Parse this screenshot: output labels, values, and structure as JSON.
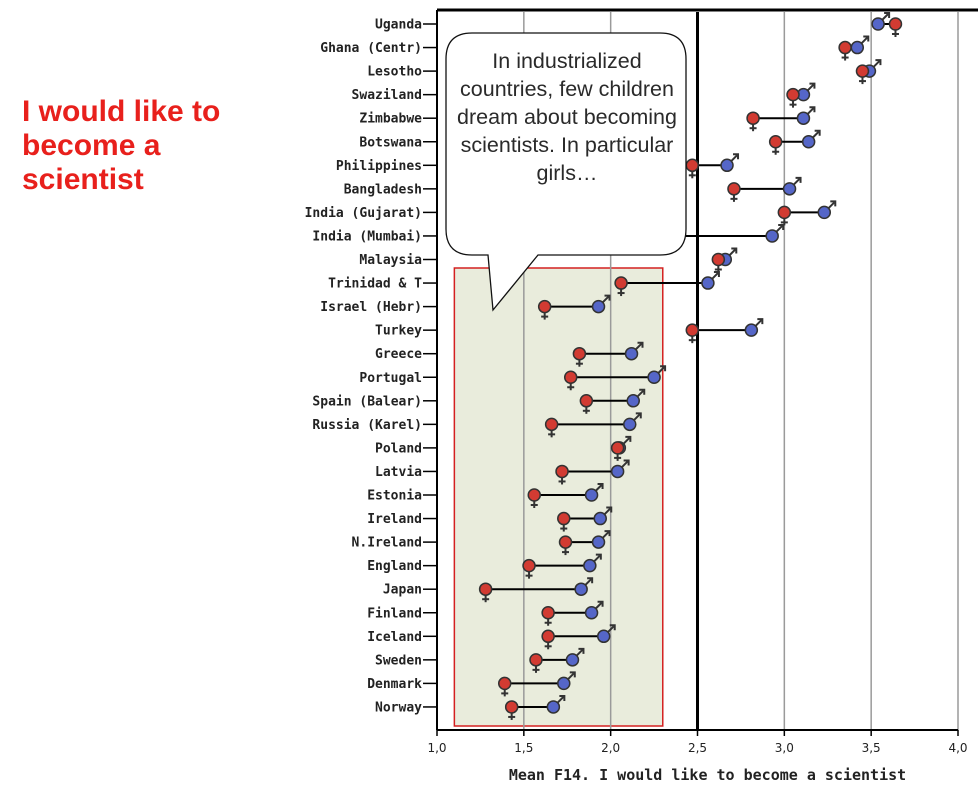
{
  "side_title": "I would like to become a scientist",
  "callout": "In industrialized countries, few children dream about becoming scientists. In particular girls…",
  "colors": {
    "female": "#d23b32",
    "male": "#5566c8",
    "highlight_border": "#d42020",
    "highlight_fill": "#e9ecdc",
    "reference_line": "#000000",
    "grid": "#9a9a9a"
  },
  "chart_data": {
    "type": "dumbbell",
    "xlabel": "Mean F14. I would like to become a scientist",
    "xlim": [
      1.0,
      4.0
    ],
    "x_ticks": [
      "1,0",
      "1,5",
      "2,0",
      "2,5",
      "3,0",
      "3,5",
      "4,0"
    ],
    "reference_line": 2.5,
    "highlight_x_range": [
      1.1,
      2.3
    ],
    "categories": [
      "Uganda",
      "Ghana (Centr)",
      "Lesotho",
      "Swaziland",
      "Zimbabwe",
      "Botswana",
      "Philippines",
      "Bangladesh",
      "India (Gujarat)",
      "India (Mumbai)",
      "Malaysia",
      "Trinidad & T",
      "Israel (Hebr)",
      "Turkey",
      "Greece",
      "Portugal",
      "Spain (Balear)",
      "Russia (Karel)",
      "Poland",
      "Latvia",
      "Estonia",
      "Ireland",
      "N.Ireland",
      "England",
      "Japan",
      "Finland",
      "Iceland",
      "Sweden",
      "Denmark",
      "Norway"
    ],
    "series": [
      {
        "name": "girls",
        "icon": "female-symbol-icon",
        "values": [
          3.64,
          3.35,
          3.45,
          3.05,
          2.82,
          2.95,
          2.47,
          2.71,
          3.0,
          2.37,
          2.62,
          2.06,
          1.62,
          2.47,
          1.82,
          1.77,
          1.86,
          1.66,
          2.04,
          1.72,
          1.56,
          1.73,
          1.74,
          1.53,
          1.28,
          1.64,
          1.64,
          1.57,
          1.39,
          1.43
        ]
      },
      {
        "name": "boys",
        "icon": "male-symbol-icon",
        "values": [
          3.54,
          3.42,
          3.49,
          3.11,
          3.11,
          3.14,
          2.67,
          3.03,
          3.23,
          2.93,
          2.66,
          2.56,
          1.93,
          2.81,
          2.12,
          2.25,
          2.13,
          2.11,
          2.05,
          2.04,
          1.89,
          1.94,
          1.93,
          1.88,
          1.83,
          1.89,
          1.96,
          1.78,
          1.73,
          1.67
        ]
      }
    ]
  }
}
